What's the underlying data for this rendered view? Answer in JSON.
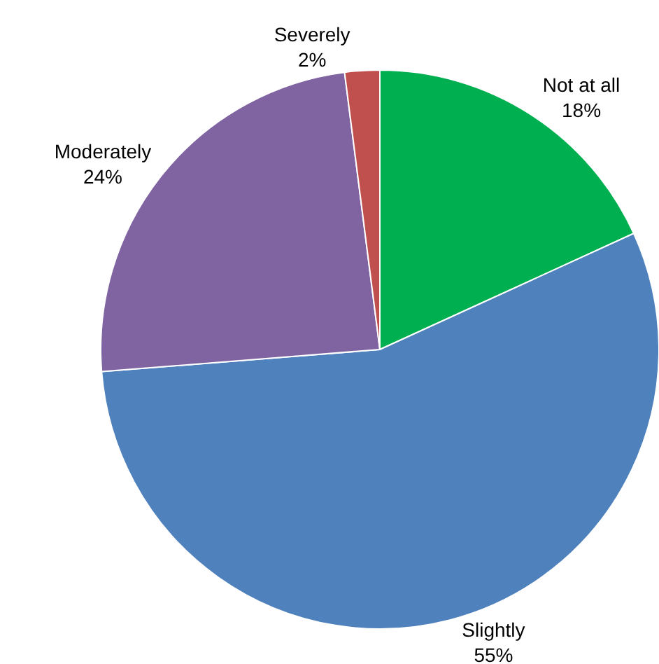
{
  "chart_data": {
    "type": "pie",
    "categories": [
      "Not at all",
      "Slightly",
      "Moderately",
      "Severely"
    ],
    "values": [
      18,
      55,
      24,
      2
    ],
    "value_labels": [
      "18%",
      "55%",
      "24%",
      "2%"
    ],
    "colors": [
      "#00b050",
      "#4f81bd",
      "#8064a2",
      "#c0504d"
    ],
    "legend": false
  }
}
